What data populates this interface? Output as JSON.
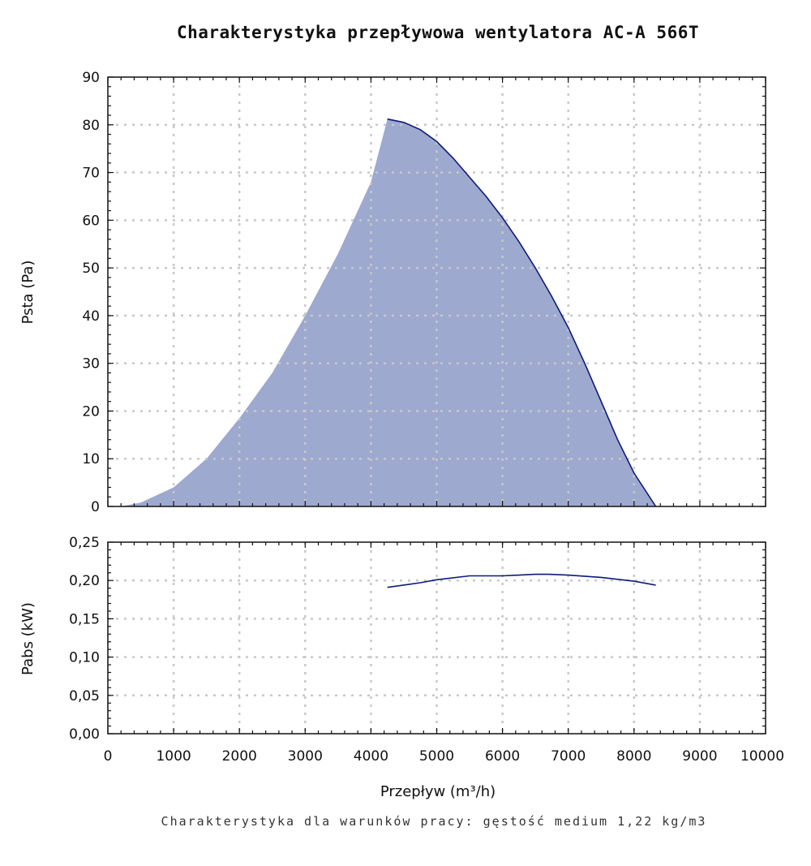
{
  "title": "Charakterystyka przepływowa wentylatora AC-A 566T",
  "footnote": "Charakterystyka dla warunków pracy: gęstość medium 1,22 kg/m3",
  "colors": {
    "fill": "#9ea9cf",
    "line": "#0d1a7a"
  },
  "chart_data": [
    {
      "type": "area",
      "ylabel": "Psta (Pa)",
      "xlim": [
        0,
        10000
      ],
      "ylim": [
        0,
        90
      ],
      "grid": true,
      "x_ticks": [
        0,
        1000,
        2000,
        3000,
        4000,
        5000,
        6000,
        7000,
        8000,
        9000,
        10000
      ],
      "y_ticks": [
        0,
        10,
        20,
        30,
        40,
        50,
        60,
        70,
        80,
        90
      ],
      "y_tick_labels": [
        "0",
        "10",
        "20",
        "30",
        "40",
        "50",
        "60",
        "70",
        "80",
        "90"
      ],
      "area_points": [
        [
          200,
          0
        ],
        [
          500,
          0.8
        ],
        [
          1000,
          4
        ],
        [
          1500,
          10
        ],
        [
          2000,
          18.5
        ],
        [
          2500,
          28
        ],
        [
          3000,
          40
        ],
        [
          3500,
          53
        ],
        [
          4000,
          68
        ],
        [
          4250,
          81.2
        ]
      ],
      "series": [
        {
          "x": [
            4250,
            4500,
            4750,
            5000,
            5250,
            5500,
            5750,
            6000,
            6250,
            6500,
            6750,
            7000,
            7250,
            7500,
            7750,
            8000,
            8330
          ],
          "y": [
            81.2,
            80.5,
            79,
            76.5,
            73,
            69,
            65,
            60.5,
            55.5,
            50,
            44,
            37.5,
            30,
            22,
            14,
            7,
            0
          ]
        }
      ]
    },
    {
      "type": "line",
      "xlabel": "Przepływ (m³/h)",
      "ylabel": "Pabs (kW)",
      "xlim": [
        0,
        10000
      ],
      "ylim": [
        0,
        0.25
      ],
      "grid": true,
      "x_ticks": [
        0,
        1000,
        2000,
        3000,
        4000,
        5000,
        6000,
        7000,
        8000,
        9000,
        10000
      ],
      "x_tick_labels": [
        "0",
        "1000",
        "2000",
        "3000",
        "4000",
        "5000",
        "6000",
        "7000",
        "8000",
        "9000",
        "10000"
      ],
      "y_ticks": [
        0,
        0.05,
        0.1,
        0.15,
        0.2,
        0.25
      ],
      "y_tick_labels": [
        "0,00",
        "0,05",
        "0,10",
        "0,15",
        "0,20",
        "0,25"
      ],
      "series": [
        {
          "x": [
            4250,
            4750,
            5000,
            5500,
            6000,
            6500,
            6700,
            7000,
            7500,
            8000,
            8330
          ],
          "y": [
            0.191,
            0.197,
            0.201,
            0.206,
            0.206,
            0.208,
            0.208,
            0.207,
            0.204,
            0.199,
            0.194
          ]
        }
      ]
    }
  ]
}
